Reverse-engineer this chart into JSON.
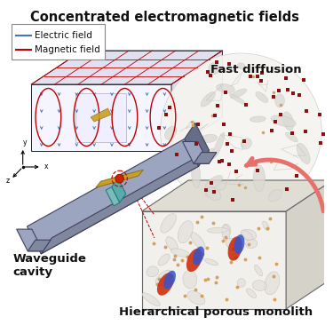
{
  "title": "Concentrated electromagnetic fields",
  "legend_electric": "Electric field",
  "legend_magnetic": "Magnetic field",
  "label_fast_diffusion": "Fast diffusion",
  "label_waveguide": "Waveguide\ncavity",
  "label_monolith": "Hierarchical porous monolith",
  "electric_color": "#4472C4",
  "magnetic_color": "#C00000",
  "waveguide_color_light": "#A0A8C0",
  "waveguide_color_mid": "#8890A8",
  "waveguide_color_dark": "#6870880",
  "red_dot_color": "#8B1010",
  "tan_dot_color": "#D2A060",
  "arrow_color": "#E8706A",
  "bg_color": "#FFFFFF",
  "title_fontsize": 10.5,
  "label_fontsize": 9.5,
  "legend_fontsize": 7.5
}
